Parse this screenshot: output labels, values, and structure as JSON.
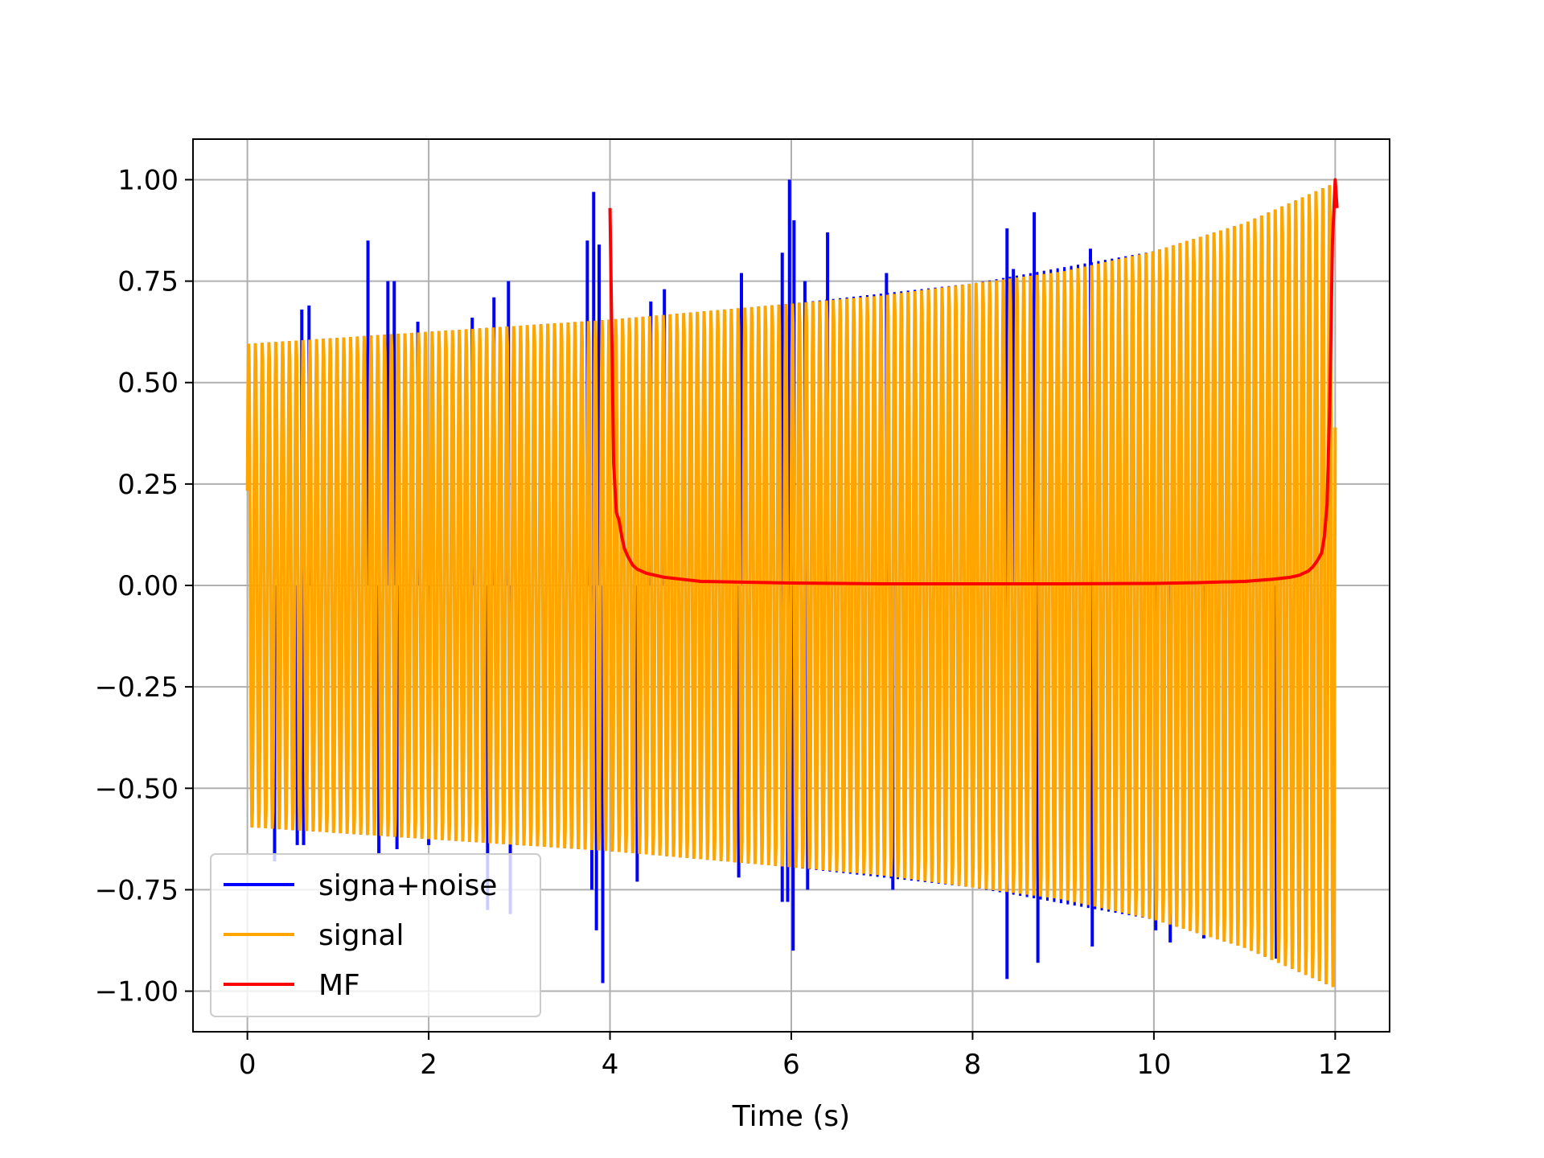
{
  "chart_data": {
    "type": "line",
    "title": "",
    "xlabel": "Time (s)",
    "ylabel": "",
    "xlim": [
      -0.6,
      12.6
    ],
    "ylim": [
      -1.1,
      1.1
    ],
    "xticks": [
      0,
      2,
      4,
      6,
      8,
      10,
      12
    ],
    "xtick_labels": [
      "0",
      "2",
      "4",
      "6",
      "8",
      "10",
      "12"
    ],
    "yticks": [
      1.0,
      0.75,
      0.5,
      0.25,
      0.0,
      -0.25,
      -0.5,
      -0.75,
      -1.0
    ],
    "ytick_labels": [
      "1.00",
      "0.75",
      "0.50",
      "0.25",
      "0.00",
      "−0.25",
      "−0.50",
      "−0.75",
      "−1.00"
    ],
    "grid": true,
    "legend_position": "lower-left",
    "series": [
      {
        "name": "signa+noise",
        "color": "#0000ff",
        "kind": "oscillation",
        "x_range": [
          0,
          12
        ],
        "envelope": {
          "x": [
            0,
            2,
            4,
            6,
            8,
            10,
            11,
            12
          ],
          "y": [
            0.6,
            0.63,
            0.66,
            0.7,
            0.75,
            0.83,
            0.9,
            1.0
          ]
        },
        "spikes": [
          {
            "x": 0.6,
            "y": 0.68
          },
          {
            "x": 0.68,
            "y": 0.69
          },
          {
            "x": 1.33,
            "y": 0.85
          },
          {
            "x": 1.55,
            "y": 0.75
          },
          {
            "x": 1.62,
            "y": 0.75
          },
          {
            "x": 1.88,
            "y": 0.65
          },
          {
            "x": 2.48,
            "y": 0.66
          },
          {
            "x": 2.72,
            "y": 0.71
          },
          {
            "x": 2.88,
            "y": 0.75
          },
          {
            "x": 3.75,
            "y": 0.85
          },
          {
            "x": 3.82,
            "y": 0.97
          },
          {
            "x": 3.88,
            "y": 0.84
          },
          {
            "x": 4.45,
            "y": 0.7
          },
          {
            "x": 4.6,
            "y": 0.73
          },
          {
            "x": 5.45,
            "y": 0.77
          },
          {
            "x": 5.9,
            "y": 0.82
          },
          {
            "x": 5.98,
            "y": 1.0
          },
          {
            "x": 6.03,
            "y": 0.9
          },
          {
            "x": 6.15,
            "y": 0.75
          },
          {
            "x": 6.4,
            "y": 0.87
          },
          {
            "x": 7.05,
            "y": 0.77
          },
          {
            "x": 8.38,
            "y": 0.88
          },
          {
            "x": 8.45,
            "y": 0.78
          },
          {
            "x": 8.68,
            "y": 0.92
          },
          {
            "x": 9.3,
            "y": 0.83
          },
          {
            "x": 0.3,
            "y": -0.68
          },
          {
            "x": 0.55,
            "y": -0.64
          },
          {
            "x": 0.62,
            "y": -0.64
          },
          {
            "x": 1.45,
            "y": -0.66
          },
          {
            "x": 1.65,
            "y": -0.65
          },
          {
            "x": 2.0,
            "y": -0.64
          },
          {
            "x": 2.65,
            "y": -0.8
          },
          {
            "x": 2.9,
            "y": -0.81
          },
          {
            "x": 3.8,
            "y": -0.75
          },
          {
            "x": 3.85,
            "y": -0.85
          },
          {
            "x": 3.92,
            "y": -0.98
          },
          {
            "x": 4.3,
            "y": -0.73
          },
          {
            "x": 5.42,
            "y": -0.72
          },
          {
            "x": 5.9,
            "y": -0.78
          },
          {
            "x": 5.96,
            "y": -0.78
          },
          {
            "x": 6.02,
            "y": -0.9
          },
          {
            "x": 6.18,
            "y": -0.75
          },
          {
            "x": 7.12,
            "y": -0.75
          },
          {
            "x": 8.38,
            "y": -0.97
          },
          {
            "x": 8.72,
            "y": -0.93
          },
          {
            "x": 9.32,
            "y": -0.89
          },
          {
            "x": 10.02,
            "y": -0.85
          },
          {
            "x": 10.18,
            "y": -0.88
          },
          {
            "x": 10.55,
            "y": -0.87
          },
          {
            "x": 11.35,
            "y": -0.92
          }
        ]
      },
      {
        "name": "signal",
        "color": "#ffa500",
        "kind": "oscillation",
        "x_range": [
          0,
          12
        ],
        "cycles": 160,
        "envelope": {
          "x": [
            0,
            2,
            4,
            6,
            7,
            8,
            9,
            10,
            11,
            11.5,
            12
          ],
          "y": [
            0.6,
            0.63,
            0.66,
            0.7,
            0.72,
            0.75,
            0.78,
            0.83,
            0.9,
            0.95,
            1.0
          ]
        }
      },
      {
        "name": "MF",
        "color": "#ff0000",
        "kind": "line",
        "x": [
          4.0,
          4.02,
          4.04,
          4.07,
          4.1,
          4.13,
          4.16,
          4.2,
          4.25,
          4.3,
          4.4,
          4.5,
          4.6,
          4.8,
          5.0,
          5.5,
          6.0,
          7.0,
          8.0,
          9.0,
          10.0,
          10.5,
          11.0,
          11.3,
          11.5,
          11.6,
          11.7,
          11.75,
          11.8,
          11.85,
          11.88,
          11.91,
          11.94,
          11.97,
          12.0,
          12.02
        ],
        "y": [
          0.93,
          0.62,
          0.3,
          0.18,
          0.16,
          0.12,
          0.09,
          0.07,
          0.05,
          0.04,
          0.03,
          0.025,
          0.02,
          0.015,
          0.01,
          0.008,
          0.006,
          0.004,
          0.004,
          0.004,
          0.005,
          0.007,
          0.01,
          0.015,
          0.02,
          0.025,
          0.035,
          0.045,
          0.06,
          0.08,
          0.12,
          0.2,
          0.45,
          0.85,
          1.0,
          0.93
        ]
      }
    ]
  }
}
